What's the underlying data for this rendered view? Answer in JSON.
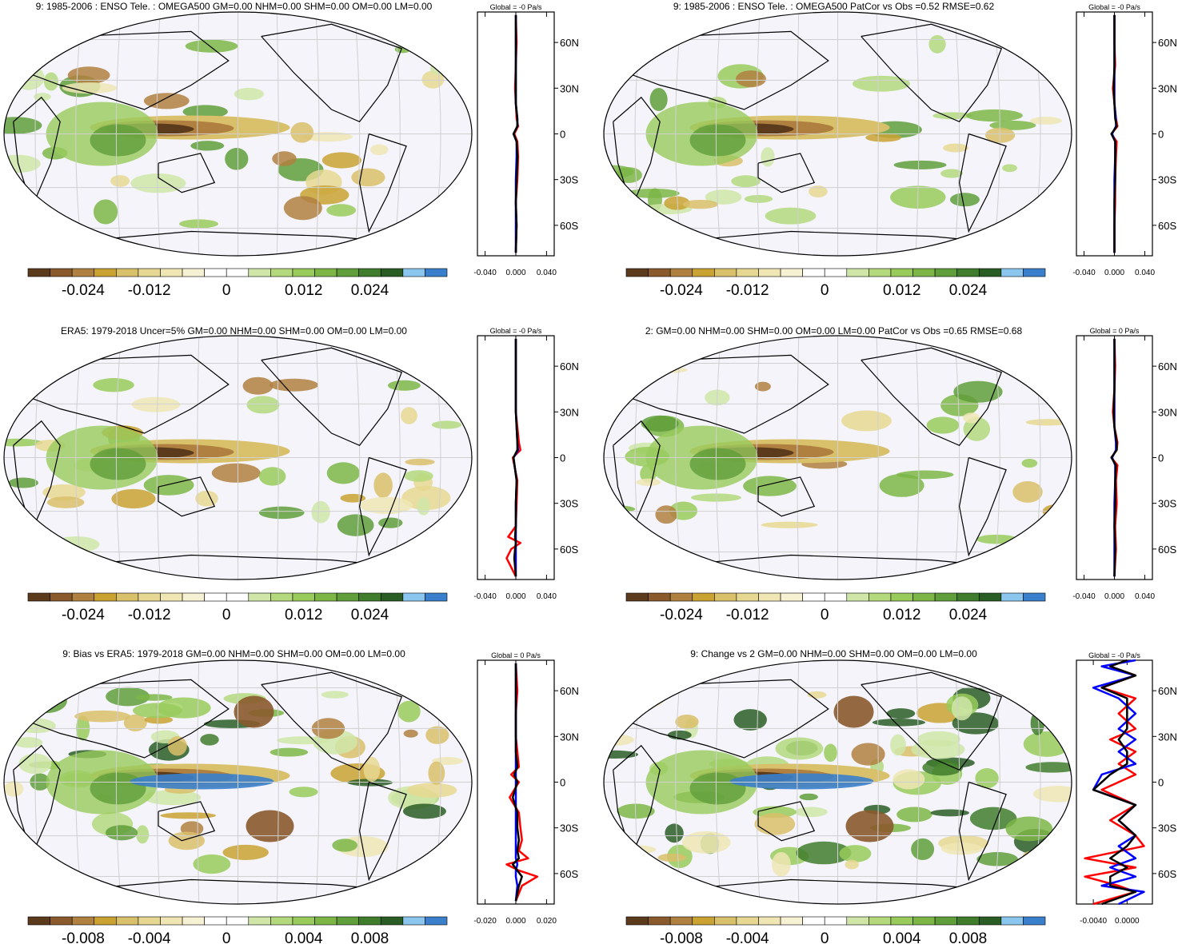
{
  "palette": [
    "#5c3a1c",
    "#8a5a2c",
    "#b08040",
    "#c9a232",
    "#d9c06a",
    "#e6d892",
    "#efe6b4",
    "#f6f1d2",
    "#ffffff",
    "#ffffff",
    "#cfe6a8",
    "#b3d97c",
    "#98cb5c",
    "#7db647",
    "#5f9e3a",
    "#3f7d2c",
    "#2a5d24",
    "#8ac6ee",
    "#3a7fcc"
  ],
  "colors": {
    "map_bg": "#f4f4fa",
    "graticule": "#d0d0d0",
    "coast": "#000000",
    "model_line": "#ff0000",
    "obs_line": "#0000ff",
    "mean_line": "#000000"
  },
  "panels": [
    {
      "id": "top-left",
      "title": "9: 1985-2006 : ENSO Tele. : OMEGA500 GM=0.00 NHM=0.00 SHM=0.00 OM=0.00 LM=0.00",
      "colorbar_ticks": [
        "-0.024",
        "-0.012",
        "0",
        "0.012",
        "0.024"
      ],
      "global_label": "Global = -0 Pa/s",
      "zonal_ticks": [
        "-0.040",
        "0.000",
        "0.040"
      ],
      "lat_ticks": [
        "60N",
        "30N",
        "0",
        "30S",
        "60S"
      ]
    },
    {
      "id": "top-right",
      "title": "9: 1985-2006 : ENSO Tele. : OMEGA500 PatCor vs Obs =0.52 RMSE=0.62",
      "colorbar_ticks": [
        "-0.024",
        "-0.012",
        "0",
        "0.012",
        "0.024"
      ],
      "global_label": "Global = -0 Pa/s",
      "zonal_ticks": [
        "-0.040",
        "0.000",
        "0.040"
      ],
      "lat_ticks": [
        "60N",
        "30N",
        "0",
        "30S",
        "60S"
      ]
    },
    {
      "id": "mid-left",
      "title": "ERA5: 1979-2018 Uncer=5% GM=0.00 NHM=0.00 SHM=0.00 OM=0.00 LM=0.00",
      "colorbar_ticks": [
        "-0.024",
        "-0.012",
        "0",
        "0.012",
        "0.024"
      ],
      "global_label": "Global = -0 Pa/s",
      "zonal_ticks": [
        "-0.040",
        "0.000",
        "0.040"
      ],
      "lat_ticks": [
        "60N",
        "30N",
        "0",
        "30S",
        "60S"
      ]
    },
    {
      "id": "mid-right",
      "title": "2: GM=0.00 NHM=0.00 SHM=0.00 OM=0.00 LM=0.00 PatCor vs Obs =0.65 RMSE=0.68",
      "colorbar_ticks": [
        "-0.024",
        "-0.012",
        "0",
        "0.012",
        "0.024"
      ],
      "global_label": "Global = 0 Pa/s",
      "zonal_ticks": [
        "-0.040",
        "0.000",
        "0.040"
      ],
      "lat_ticks": [
        "60N",
        "30N",
        "0",
        "30S",
        "60S"
      ]
    },
    {
      "id": "bot-left",
      "title": "9: Bias vs ERA5: 1979-2018 GM=0.00 NHM=0.00 SHM=0.00 OM=0.00 LM=0.00",
      "colorbar_ticks": [
        "-0.008",
        "-0.004",
        "0",
        "0.004",
        "0.008"
      ],
      "global_label": "Global = 0 Pa/s",
      "zonal_ticks": [
        "-0.020",
        "0.000",
        "0.020"
      ],
      "lat_ticks": [
        "60N",
        "30N",
        "0",
        "30S",
        "60S"
      ]
    },
    {
      "id": "bot-right",
      "title": "9: Change vs 2 GM=0.00 NHM=0.00 SHM=0.00 OM=0.00 LM=0.00",
      "colorbar_ticks": [
        "-0.008",
        "-0.004",
        "0",
        "0.004",
        "0.008"
      ],
      "global_label": "Global = -0 Pa/s",
      "zonal_ticks": [
        "-0.0040",
        "0.0000"
      ],
      "lat_ticks": [
        "60N",
        "30N",
        "0",
        "30S",
        "60S"
      ]
    }
  ],
  "chart_data": [
    {
      "type": "heatmap",
      "title": "9: 1985-2006 : ENSO Tele. : OMEGA500 GM=0.00 NHM=0.00 SHM=0.00 OM=0.00 LM=0.00",
      "variable": "OMEGA500",
      "units": "Pa/s",
      "colorbar_range": [
        -0.03,
        0.03
      ],
      "colorbar_ticks": [
        -0.024,
        -0.012,
        0,
        0.012,
        0.024
      ],
      "lat_ticks": [
        60,
        30,
        0,
        -30,
        -60
      ],
      "zonal_mean": {
        "xlim": [
          -0.05,
          0.05
        ],
        "xticks": [
          -0.04,
          0,
          0.04
        ],
        "lat": [
          -78,
          -60,
          -45,
          -30,
          -15,
          -5,
          0,
          5,
          10,
          20,
          30,
          45,
          60,
          78
        ],
        "model": [
          0,
          0.001,
          0,
          0.002,
          0.003,
          0.002,
          -0.002,
          0.003,
          0.001,
          0,
          -0.001,
          0,
          0.001,
          0
        ],
        "obs": [
          0,
          0,
          0,
          0,
          0.001,
          0.001,
          -0.003,
          0.002,
          0.002,
          0,
          0,
          0,
          0,
          0
        ],
        "mean": [
          0,
          0.001,
          0,
          0.001,
          0.002,
          0.001,
          -0.003,
          0.002,
          0.002,
          0,
          0,
          0,
          0,
          0
        ]
      }
    },
    {
      "type": "heatmap",
      "title": "9: 1985-2006 : ENSO Tele. : OMEGA500 PatCor vs Obs =0.52 RMSE=0.62",
      "variable": "OMEGA500",
      "units": "Pa/s",
      "colorbar_range": [
        -0.03,
        0.03
      ],
      "colorbar_ticks": [
        -0.024,
        -0.012,
        0,
        0.012,
        0.024
      ],
      "lat_ticks": [
        60,
        30,
        0,
        -30,
        -60
      ],
      "zonal_mean": {
        "xlim": [
          -0.05,
          0.05
        ],
        "xticks": [
          -0.04,
          0,
          0.04
        ],
        "lat": [
          -78,
          -60,
          -45,
          -30,
          -15,
          -5,
          0,
          5,
          10,
          20,
          30,
          45,
          60,
          78
        ],
        "model": [
          0,
          0,
          0.001,
          0.001,
          0.002,
          0.003,
          -0.004,
          0.004,
          0.002,
          0,
          -0.002,
          0.001,
          0,
          0
        ],
        "obs": [
          0,
          0,
          0,
          0,
          0.001,
          0.001,
          -0.003,
          0.002,
          0.002,
          0,
          0,
          0,
          0,
          0
        ],
        "mean": [
          0,
          0,
          0,
          0.001,
          0.001,
          0.001,
          -0.004,
          0.003,
          0.001,
          0,
          -0.001,
          0,
          0,
          0
        ]
      }
    },
    {
      "type": "heatmap",
      "title": "ERA5: 1979-2018 Uncer=5% GM=0.00 NHM=0.00 SHM=0.00 OM=0.00 LM=0.00",
      "variable": "OMEGA500",
      "units": "Pa/s",
      "colorbar_range": [
        -0.03,
        0.03
      ],
      "colorbar_ticks": [
        -0.024,
        -0.012,
        0,
        0.012,
        0.024
      ],
      "lat_ticks": [
        60,
        30,
        0,
        -30,
        -60
      ],
      "zonal_mean": {
        "xlim": [
          -0.05,
          0.05
        ],
        "xticks": [
          -0.04,
          0,
          0.04
        ],
        "lat": [
          -78,
          -66,
          -60,
          -56,
          -52,
          -45,
          -30,
          -15,
          0,
          5,
          10,
          30,
          45,
          60,
          78
        ],
        "model": [
          0,
          -0.012,
          -0.006,
          0.006,
          -0.01,
          0,
          0.001,
          0.002,
          -0.004,
          0.006,
          0.004,
          0,
          0,
          0,
          0
        ],
        "obs": [
          0,
          0,
          0,
          0,
          0,
          0,
          0,
          0.001,
          -0.003,
          0.003,
          0.002,
          0,
          0,
          0,
          0
        ],
        "mean": [
          0,
          -0.002,
          -0.001,
          0,
          -0.001,
          0,
          0,
          0.001,
          -0.003,
          0.002,
          0.002,
          0,
          0,
          0,
          0
        ]
      }
    },
    {
      "type": "heatmap",
      "title": "2: GM=0.00 NHM=0.00 SHM=0.00 OM=0.00 LM=0.00 PatCor vs Obs =0.65 RMSE=0.68",
      "variable": "OMEGA500",
      "units": "Pa/s",
      "colorbar_range": [
        -0.03,
        0.03
      ],
      "colorbar_ticks": [
        -0.024,
        -0.012,
        0,
        0.012,
        0.024
      ],
      "lat_ticks": [
        60,
        30,
        0,
        -30,
        -60
      ],
      "zonal_mean": {
        "xlim": [
          -0.05,
          0.05
        ],
        "xticks": [
          -0.04,
          0,
          0.04
        ],
        "lat": [
          -78,
          -60,
          -45,
          -30,
          -15,
          -5,
          0,
          5,
          10,
          20,
          30,
          45,
          60,
          78
        ],
        "model": [
          0,
          0.002,
          0.001,
          0.003,
          0.002,
          0.004,
          -0.004,
          0.003,
          0.004,
          0,
          -0.002,
          0,
          0.001,
          0
        ],
        "obs": [
          0,
          0,
          0,
          0,
          0.001,
          0.001,
          -0.003,
          0.002,
          0.002,
          0,
          0,
          0,
          0,
          0
        ],
        "mean": [
          0,
          0.001,
          0,
          0.001,
          0.001,
          0.002,
          -0.004,
          0.003,
          0.003,
          0,
          -0.001,
          0,
          0,
          0
        ]
      }
    },
    {
      "type": "heatmap",
      "title": "9: Bias vs ERA5: 1979-2018 GM=0.00 NHM=0.00 SHM=0.00 OM=0.00 LM=0.00",
      "variable": "OMEGA500",
      "units": "Pa/s",
      "colorbar_range": [
        -0.01,
        0.01
      ],
      "colorbar_ticks": [
        -0.008,
        -0.004,
        0,
        0.004,
        0.008
      ],
      "lat_ticks": [
        60,
        30,
        0,
        -30,
        -60
      ],
      "zonal_mean": {
        "xlim": [
          -0.025,
          0.025
        ],
        "xticks": [
          -0.02,
          0,
          0.02
        ],
        "lat": [
          -78,
          -68,
          -62,
          -58,
          -54,
          -50,
          -45,
          -38,
          -30,
          -20,
          -10,
          0,
          5,
          10,
          20,
          30,
          45,
          60,
          78
        ],
        "model": [
          0,
          0.004,
          0.014,
          0.002,
          -0.006,
          0.008,
          0.002,
          0.004,
          0.003,
          0.002,
          -0.004,
          0.002,
          -0.003,
          0.002,
          0.001,
          0,
          0,
          0.001,
          0
        ],
        "obs": [
          0,
          0.001,
          0,
          0,
          0.001,
          0,
          0,
          0,
          0,
          0,
          0,
          0,
          0,
          0,
          0,
          0,
          0,
          0,
          0
        ],
        "mean": [
          0,
          0.002,
          0.004,
          0.001,
          -0.002,
          0.002,
          0.001,
          0.002,
          0.001,
          0.001,
          -0.002,
          0.001,
          -0.001,
          0.001,
          0,
          0,
          0,
          0,
          0
        ]
      }
    },
    {
      "type": "heatmap",
      "title": "9: Change vs 2 GM=0.00 NHM=0.00 SHM=0.00 OM=0.00 LM=0.00",
      "variable": "OMEGA500",
      "units": "Pa/s",
      "colorbar_range": [
        -0.01,
        0.01
      ],
      "colorbar_ticks": [
        -0.008,
        -0.004,
        0,
        0.004,
        0.008
      ],
      "lat_ticks": [
        60,
        30,
        0,
        -30,
        -60
      ],
      "zonal_mean": {
        "xlim": [
          -0.006,
          0.003
        ],
        "xticks": [
          -0.004,
          0
        ],
        "lat": [
          -80,
          -72,
          -68,
          -62,
          -56,
          -50,
          -42,
          -35,
          -25,
          -15,
          -5,
          5,
          12,
          20,
          28,
          35,
          45,
          55,
          62,
          70,
          76,
          80
        ],
        "model": [
          -0.004,
          0.001,
          -0.001,
          -0.005,
          0.001,
          -0.005,
          0.002,
          0.001,
          -0.002,
          0.001,
          -0.003,
          0.001,
          -0.001,
          0.001,
          -0.002,
          0.001,
          -0.001,
          0.001,
          -0.003,
          0.001,
          -0.002,
          0
        ],
        "obs": [
          -0.001,
          0.002,
          -0.003,
          0.001,
          -0.002,
          0.001,
          -0.001,
          0.001,
          -0.001,
          0.001,
          -0.004,
          -0.003,
          0.001,
          -0.001,
          0.001,
          -0.001,
          0.001,
          -0.001,
          -0.004,
          0.001,
          -0.003,
          0.001
        ],
        "mean": [
          -0.003,
          0.001,
          -0.002,
          -0.002,
          0,
          -0.002,
          0,
          0.001,
          -0.001,
          0.001,
          -0.004,
          -0.002,
          0,
          0,
          -0.001,
          0,
          0,
          0,
          -0.003,
          0.001,
          -0.002,
          0
        ]
      }
    }
  ]
}
